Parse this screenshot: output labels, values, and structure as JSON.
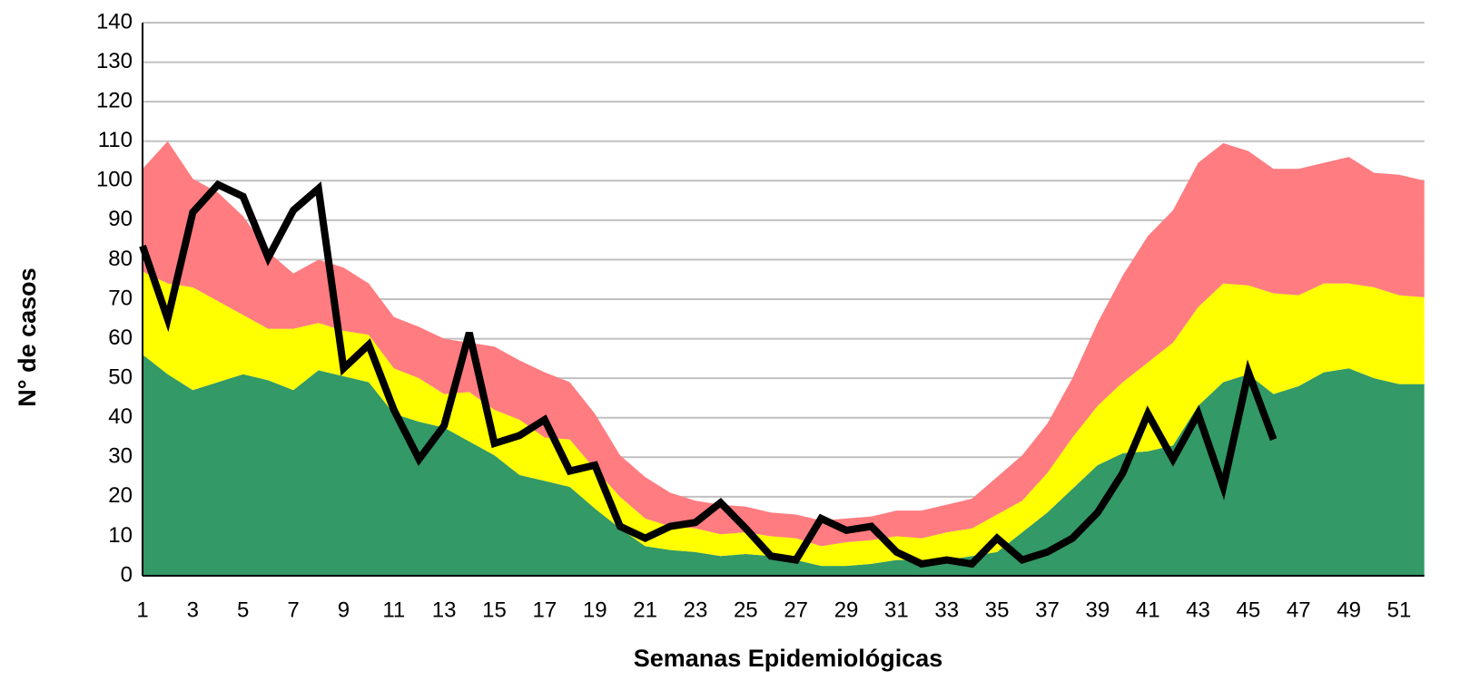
{
  "chart_data": {
    "type": "area_line",
    "xlabel": "Semanas Epidemiológicas",
    "ylabel": "N° de casos",
    "x": [
      1,
      2,
      3,
      4,
      5,
      6,
      7,
      8,
      9,
      10,
      11,
      12,
      13,
      14,
      15,
      16,
      17,
      18,
      19,
      20,
      21,
      22,
      23,
      24,
      25,
      26,
      27,
      28,
      29,
      30,
      31,
      32,
      33,
      34,
      35,
      36,
      37,
      38,
      39,
      40,
      41,
      42,
      43,
      44,
      45,
      46,
      47,
      48,
      49,
      50,
      51,
      52
    ],
    "xlim": [
      1,
      52
    ],
    "xticks": [
      1,
      3,
      5,
      7,
      9,
      11,
      13,
      15,
      17,
      19,
      21,
      23,
      25,
      27,
      29,
      31,
      33,
      35,
      37,
      39,
      41,
      43,
      45,
      47,
      49,
      51
    ],
    "ylim": [
      0,
      140
    ],
    "yticks": [
      0,
      10,
      20,
      30,
      40,
      50,
      60,
      70,
      80,
      90,
      100,
      110,
      120,
      130,
      140
    ],
    "grid": true,
    "series": [
      {
        "kind": "stacked_area",
        "color": "#339966",
        "values": [
          56,
          51,
          47,
          49,
          51,
          49.5,
          47,
          52,
          50.5,
          49,
          41,
          39,
          37.5,
          34,
          30.5,
          25.5,
          24,
          22.5,
          17,
          12,
          7.5,
          6.5,
          6,
          5,
          5.5,
          5,
          4,
          2.5,
          2.5,
          3,
          4,
          4,
          4,
          5,
          6,
          11,
          16,
          22,
          28,
          31,
          31.5,
          33,
          43,
          49,
          51,
          46,
          48,
          51.5,
          52.5,
          50,
          48.5,
          48.5
        ]
      },
      {
        "kind": "stacked_area",
        "color": "#ffff00",
        "values": [
          21,
          23,
          26,
          20.5,
          15,
          13,
          15.5,
          12,
          11.5,
          12,
          11.5,
          11,
          8.5,
          12.5,
          11.5,
          14,
          11,
          12,
          10,
          8,
          7,
          6,
          6,
          5.5,
          5.5,
          5,
          5.5,
          5,
          6,
          6,
          6,
          5.5,
          7,
          7,
          9.5,
          8,
          10,
          13,
          15,
          18,
          22.5,
          26,
          25,
          25,
          22.5,
          25.5,
          23,
          22.5,
          21.5,
          23,
          22.5,
          22
        ]
      },
      {
        "kind": "stacked_area",
        "color": "#ff7c80",
        "values": [
          26,
          36,
          27.5,
          27.5,
          25,
          19.5,
          14,
          16,
          16,
          13,
          13,
          13,
          14,
          12.5,
          16,
          15,
          16.5,
          14.5,
          14,
          10.5,
          10.5,
          8.5,
          7,
          7.5,
          6.5,
          6,
          6,
          6.5,
          6,
          6,
          6.5,
          7,
          7,
          7.5,
          9.5,
          11.5,
          12.5,
          15,
          21,
          27,
          32,
          33.5,
          36.5,
          35.5,
          34,
          31.5,
          32,
          30.5,
          32,
          29,
          30.5,
          29.5
        ]
      },
      {
        "kind": "line",
        "color": "#000000",
        "values": [
          83.5,
          65,
          92,
          99,
          96,
          80.5,
          92.5,
          98,
          52.5,
          58.5,
          42,
          29.5,
          38,
          61.5,
          33.5,
          35.5,
          39.5,
          26.5,
          28,
          12.5,
          9.5,
          12.5,
          13.5,
          18.5,
          12,
          5,
          4,
          14.5,
          11.5,
          12.5,
          6,
          3,
          4,
          3,
          9.5,
          4,
          6,
          9.5,
          16,
          26,
          41,
          29.5,
          41,
          22.5,
          51.5,
          34.5,
          null,
          null,
          null,
          null,
          null,
          null
        ]
      }
    ]
  }
}
